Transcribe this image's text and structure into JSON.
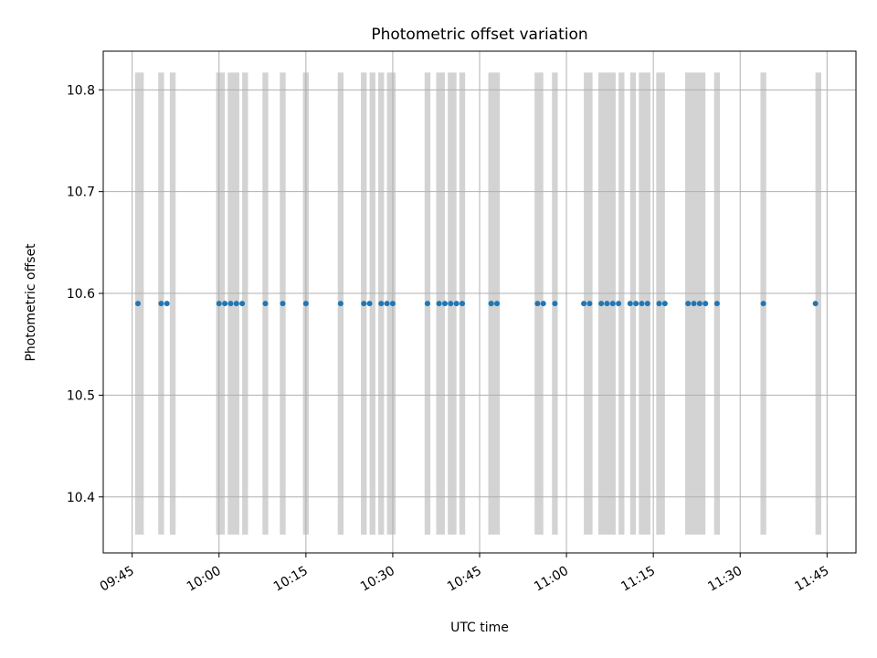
{
  "chart_data": {
    "type": "scatter",
    "title": "Photometric offset variation",
    "xlabel": "UTC time",
    "ylabel": "Photometric offset",
    "xlim": [
      "09:40",
      "11:50"
    ],
    "ylim": [
      10.345,
      10.838
    ],
    "grid": true,
    "x_ticks": [
      "09:45",
      "10:00",
      "10:15",
      "10:30",
      "10:45",
      "11:00",
      "11:15",
      "11:30",
      "11:45"
    ],
    "y_ticks": [
      10.4,
      10.5,
      10.6,
      10.7,
      10.8
    ],
    "series": [
      {
        "marker_color": "#1f77b4",
        "x": [
          "09:46",
          "09:50",
          "09:51",
          "10:00",
          "10:01",
          "10:02",
          "10:03",
          "10:04",
          "10:08",
          "10:11",
          "10:15",
          "10:21",
          "10:25",
          "10:26",
          "10:28",
          "10:29",
          "10:30",
          "10:36",
          "10:38",
          "10:39",
          "10:40",
          "10:41",
          "10:42",
          "10:47",
          "10:47",
          "10:48",
          "10:55",
          "10:56",
          "10:58",
          "11:03",
          "11:04",
          "11:06",
          "11:07",
          "11:08",
          "11:09",
          "11:11",
          "11:12",
          "11:13",
          "11:14",
          "11:16",
          "11:17",
          "11:21",
          "11:22",
          "11:23",
          "11:24",
          "11:26",
          "11:34",
          "11:43"
        ],
        "y": [
          10.59,
          10.59,
          10.59,
          10.59,
          10.59,
          10.59,
          10.59,
          10.59,
          10.59,
          10.59,
          10.59,
          10.59,
          10.59,
          10.59,
          10.59,
          10.59,
          10.59,
          10.59,
          10.59,
          10.59,
          10.59,
          10.59,
          10.59,
          10.59,
          10.59,
          10.59,
          10.59,
          10.59,
          10.59,
          10.59,
          10.59,
          10.59,
          10.59,
          10.59,
          10.59,
          10.59,
          10.59,
          10.59,
          10.59,
          10.59,
          10.59,
          10.59,
          10.59,
          10.59,
          10.59,
          10.59,
          10.59,
          10.59
        ]
      }
    ],
    "bands": {
      "color": "#d3d3d3",
      "y_range": [
        10.363,
        10.817
      ],
      "intervals": [
        [
          "09:45.5",
          "09:47"
        ],
        [
          "09:49.5",
          "09:50.5"
        ],
        [
          "09:51.5",
          "09:52.5"
        ],
        [
          "09:59.5",
          "10:01"
        ],
        [
          "10:01.5",
          "10:03.5"
        ],
        [
          "10:04",
          "10:05"
        ],
        [
          "10:07.5",
          "10:08.5"
        ],
        [
          "10:10.5",
          "10:11.5"
        ],
        [
          "10:14.5",
          "10:15.5"
        ],
        [
          "10:20.5",
          "10:21.5"
        ],
        [
          "10:24.5",
          "10:25.5"
        ],
        [
          "10:26",
          "10:27"
        ],
        [
          "10:27.5",
          "10:28.5"
        ],
        [
          "10:29",
          "10:30.5"
        ],
        [
          "10:35.5",
          "10:36.5"
        ],
        [
          "10:37.5",
          "10:39"
        ],
        [
          "10:39.5",
          "10:41"
        ],
        [
          "10:41.5",
          "10:42.5"
        ],
        [
          "10:46.5",
          "10:48.5"
        ],
        [
          "10:54.5",
          "10:56"
        ],
        [
          "10:57.5",
          "10:58.5"
        ],
        [
          "11:03",
          "11:04.5"
        ],
        [
          "11:05.5",
          "11:08.5"
        ],
        [
          "11:09",
          "11:10"
        ],
        [
          "11:11",
          "11:12"
        ],
        [
          "11:12.5",
          "11:14.5"
        ],
        [
          "11:15.5",
          "11:17"
        ],
        [
          "11:20.5",
          "11:24"
        ],
        [
          "11:25.5",
          "11:26.5"
        ],
        [
          "11:33.5",
          "11:34.5"
        ],
        [
          "11:43",
          "11:44"
        ]
      ]
    }
  }
}
